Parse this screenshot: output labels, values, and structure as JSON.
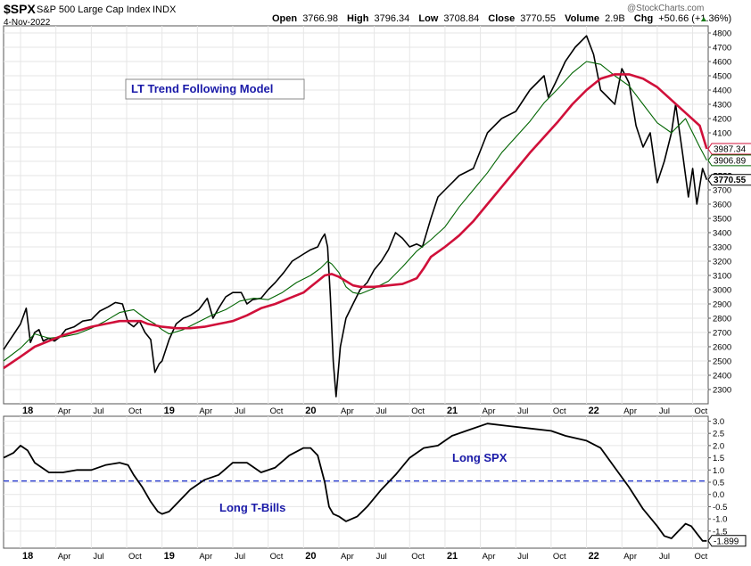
{
  "header": {
    "symbol": "$SPX",
    "name": "S&P 500 Large Cap Index",
    "exchange": "INDX",
    "date": "4-Nov-2022",
    "watermark": "@StockCharts.com",
    "open_label": "Open",
    "open": "3766.98",
    "high_label": "High",
    "high": "3796.34",
    "low_label": "Low",
    "low": "3708.84",
    "close_label": "Close",
    "close": "3770.55",
    "volume_label": "Volume",
    "volume": "2.9B",
    "chg_label": "Chg",
    "chg": "+50.66 (+1.36%)"
  },
  "annotations": {
    "model": "LT Trend Following Model",
    "long_spx": "Long SPX",
    "long_tbills": "Long T-Bills"
  },
  "price_labels": {
    "ma_long": "3987.34",
    "ma_short": "3906.89",
    "last": "3770.55",
    "hidden": "3800"
  },
  "osc_label": "-1.899",
  "colors": {
    "price": "#000000",
    "ma_long": "#d0103a",
    "ma_short": "#006400",
    "oscillator": "#000000",
    "threshold": "#1a2ecc",
    "annotation_text": "#1a1aa8",
    "grid": "#e6e6e6",
    "frame": "#555555"
  },
  "chart_data": {
    "type": "line",
    "title": "$SPX S&P 500 Large Cap Index INDX",
    "x_range": [
      "2017-11",
      "2022-11"
    ],
    "x_tick_labels": [
      "18",
      "Apr",
      "Jul",
      "Oct",
      "19",
      "Apr",
      "Jul",
      "Oct",
      "20",
      "Apr",
      "Jul",
      "Oct",
      "21",
      "Apr",
      "Jul",
      "Oct",
      "22",
      "Apr",
      "Jul",
      "Oct"
    ],
    "x_tick_times": [
      2018.0,
      2018.25,
      2018.5,
      2018.75,
      2019.0,
      2019.25,
      2019.5,
      2019.75,
      2020.0,
      2020.25,
      2020.5,
      2020.75,
      2021.0,
      2021.25,
      2021.5,
      2021.75,
      2022.0,
      2022.25,
      2022.5,
      2022.75
    ],
    "upper_panel": {
      "ylim": [
        2200,
        4850
      ],
      "y_ticks": [
        2300,
        2400,
        2500,
        2600,
        2700,
        2800,
        2900,
        3000,
        3100,
        3200,
        3300,
        3400,
        3500,
        3600,
        3700,
        3800,
        3900,
        4000,
        4100,
        4200,
        4300,
        4400,
        4500,
        4600,
        4700,
        4800
      ],
      "series": [
        {
          "name": "SPX Close",
          "x": [
            2017.88,
            2017.92,
            2017.96,
            2018.0,
            2018.04,
            2018.07,
            2018.1,
            2018.13,
            2018.16,
            2018.2,
            2018.24,
            2018.28,
            2018.32,
            2018.38,
            2018.44,
            2018.5,
            2018.56,
            2018.62,
            2018.67,
            2018.72,
            2018.76,
            2018.8,
            2018.84,
            2018.88,
            2018.92,
            2018.95,
            2018.98,
            2019.0,
            2019.05,
            2019.1,
            2019.15,
            2019.2,
            2019.26,
            2019.32,
            2019.36,
            2019.4,
            2019.45,
            2019.5,
            2019.56,
            2019.6,
            2019.64,
            2019.7,
            2019.75,
            2019.8,
            2019.86,
            2019.92,
            2020.0,
            2020.05,
            2020.1,
            2020.13,
            2020.15,
            2020.17,
            2020.19,
            2020.21,
            2020.23,
            2020.26,
            2020.3,
            2020.35,
            2020.4,
            2020.45,
            2020.5,
            2020.55,
            2020.6,
            2020.65,
            2020.7,
            2020.75,
            2020.8,
            2020.84,
            2020.9,
            2020.95,
            2021.0,
            2021.1,
            2021.2,
            2021.3,
            2021.4,
            2021.5,
            2021.6,
            2021.7,
            2021.73,
            2021.78,
            2021.85,
            2021.92,
            2022.0,
            2022.05,
            2022.1,
            2022.15,
            2022.2,
            2022.25,
            2022.3,
            2022.35,
            2022.4,
            2022.45,
            2022.5,
            2022.55,
            2022.6,
            2022.63,
            2022.68,
            2022.72,
            2022.75,
            2022.78,
            2022.82,
            2022.85
          ],
          "values": [
            2580,
            2640,
            2700,
            2760,
            2870,
            2630,
            2700,
            2720,
            2640,
            2660,
            2640,
            2670,
            2720,
            2740,
            2780,
            2790,
            2850,
            2880,
            2910,
            2900,
            2770,
            2740,
            2780,
            2700,
            2650,
            2420,
            2480,
            2500,
            2650,
            2760,
            2800,
            2820,
            2860,
            2940,
            2800,
            2870,
            2950,
            2980,
            2980,
            2900,
            2930,
            2940,
            3000,
            3050,
            3120,
            3200,
            3250,
            3280,
            3300,
            3360,
            3390,
            3300,
            2950,
            2500,
            2250,
            2600,
            2800,
            2900,
            3000,
            3050,
            3140,
            3200,
            3280,
            3400,
            3360,
            3300,
            3320,
            3300,
            3500,
            3650,
            3700,
            3800,
            3850,
            4100,
            4200,
            4250,
            4400,
            4500,
            4350,
            4450,
            4600,
            4700,
            4780,
            4650,
            4400,
            4350,
            4300,
            4550,
            4450,
            4150,
            4000,
            4100,
            3750,
            3900,
            4100,
            4300,
            3950,
            3650,
            3850,
            3600,
            3850,
            3770.55
          ]
        },
        {
          "name": "MA (short, green)",
          "x": [
            2017.88,
            2018.0,
            2018.1,
            2018.2,
            2018.3,
            2018.4,
            2018.5,
            2018.6,
            2018.7,
            2018.8,
            2018.88,
            2018.95,
            2019.0,
            2019.05,
            2019.15,
            2019.25,
            2019.35,
            2019.45,
            2019.55,
            2019.65,
            2019.75,
            2019.85,
            2019.95,
            2020.05,
            2020.12,
            2020.17,
            2020.2,
            2020.25,
            2020.3,
            2020.35,
            2020.4,
            2020.5,
            2020.6,
            2020.7,
            2020.8,
            2020.9,
            2021.0,
            2021.1,
            2021.2,
            2021.3,
            2021.4,
            2021.5,
            2021.6,
            2021.7,
            2021.8,
            2021.9,
            2022.0,
            2022.1,
            2022.2,
            2022.3,
            2022.4,
            2022.5,
            2022.6,
            2022.65,
            2022.7,
            2022.75,
            2022.8,
            2022.85
          ],
          "values": [
            2500,
            2590,
            2690,
            2660,
            2670,
            2690,
            2730,
            2780,
            2840,
            2860,
            2800,
            2760,
            2720,
            2690,
            2720,
            2770,
            2820,
            2860,
            2920,
            2940,
            2930,
            2980,
            3050,
            3100,
            3150,
            3200,
            3180,
            3120,
            3020,
            2980,
            2970,
            3010,
            3060,
            3160,
            3270,
            3350,
            3440,
            3580,
            3700,
            3820,
            3960,
            4070,
            4180,
            4310,
            4410,
            4520,
            4600,
            4580,
            4500,
            4430,
            4300,
            4170,
            4100,
            4150,
            4200,
            4100,
            4000,
            3906.89
          ]
        },
        {
          "name": "MA (long, red)",
          "x": [
            2017.88,
            2018.0,
            2018.1,
            2018.2,
            2018.3,
            2018.4,
            2018.5,
            2018.6,
            2018.7,
            2018.8,
            2018.85,
            2018.9,
            2018.95,
            2019.0,
            2019.1,
            2019.2,
            2019.3,
            2019.4,
            2019.5,
            2019.6,
            2019.7,
            2019.8,
            2019.9,
            2020.0,
            2020.05,
            2020.1,
            2020.15,
            2020.2,
            2020.25,
            2020.3,
            2020.35,
            2020.4,
            2020.5,
            2020.6,
            2020.7,
            2020.75,
            2020.8,
            2020.85,
            2020.9,
            2021.0,
            2021.1,
            2021.2,
            2021.3,
            2021.4,
            2021.5,
            2021.6,
            2021.7,
            2021.8,
            2021.9,
            2022.0,
            2022.1,
            2022.2,
            2022.3,
            2022.4,
            2022.5,
            2022.6,
            2022.7,
            2022.8,
            2022.85
          ],
          "values": [
            2450,
            2530,
            2600,
            2640,
            2680,
            2710,
            2740,
            2760,
            2780,
            2780,
            2780,
            2760,
            2750,
            2740,
            2730,
            2730,
            2740,
            2760,
            2780,
            2820,
            2870,
            2900,
            2940,
            2980,
            3020,
            3060,
            3100,
            3110,
            3090,
            3060,
            3030,
            3020,
            3020,
            3030,
            3040,
            3060,
            3080,
            3150,
            3230,
            3300,
            3380,
            3480,
            3600,
            3720,
            3840,
            3960,
            4070,
            4180,
            4300,
            4400,
            4480,
            4510,
            4510,
            4480,
            4420,
            4330,
            4240,
            4150,
            3987.34
          ]
        }
      ]
    },
    "lower_panel": {
      "ylim": [
        -2.2,
        3.2
      ],
      "y_ticks": [
        -1.5,
        -1.0,
        -0.5,
        0.0,
        0.5,
        1.0,
        1.5,
        2.0,
        2.5,
        3.0
      ],
      "threshold": 0.55,
      "series": [
        {
          "name": "Trend oscillator",
          "x": [
            2017.88,
            2017.95,
            2018.0,
            2018.05,
            2018.1,
            2018.2,
            2018.3,
            2018.4,
            2018.5,
            2018.6,
            2018.7,
            2018.76,
            2018.8,
            2018.86,
            2018.92,
            2018.97,
            2019.0,
            2019.05,
            2019.1,
            2019.2,
            2019.3,
            2019.4,
            2019.5,
            2019.6,
            2019.7,
            2019.8,
            2019.9,
            2020.0,
            2020.05,
            2020.1,
            2020.15,
            2020.18,
            2020.21,
            2020.25,
            2020.3,
            2020.38,
            2020.45,
            2020.55,
            2020.65,
            2020.75,
            2020.85,
            2020.95,
            2021.05,
            2021.15,
            2021.3,
            2021.45,
            2021.6,
            2021.75,
            2021.85,
            2022.0,
            2022.1,
            2022.2,
            2022.3,
            2022.4,
            2022.5,
            2022.55,
            2022.6,
            2022.65,
            2022.7,
            2022.74,
            2022.78,
            2022.82,
            2022.85
          ],
          "values": [
            1.5,
            1.7,
            2.0,
            1.8,
            1.3,
            0.9,
            0.9,
            1.0,
            1.0,
            1.2,
            1.3,
            1.2,
            0.8,
            0.3,
            -0.3,
            -0.7,
            -0.8,
            -0.7,
            -0.4,
            0.2,
            0.6,
            0.8,
            1.3,
            1.3,
            0.9,
            1.1,
            1.6,
            1.9,
            1.9,
            1.6,
            0.5,
            -0.5,
            -0.8,
            -0.9,
            -1.1,
            -0.9,
            -0.5,
            0.2,
            0.8,
            1.5,
            1.9,
            2.0,
            2.4,
            2.6,
            2.9,
            2.8,
            2.7,
            2.6,
            2.4,
            2.2,
            1.9,
            1.1,
            0.3,
            -0.6,
            -1.3,
            -1.7,
            -1.8,
            -1.5,
            -1.2,
            -1.3,
            -1.6,
            -1.9,
            -1.899
          ]
        }
      ]
    }
  }
}
